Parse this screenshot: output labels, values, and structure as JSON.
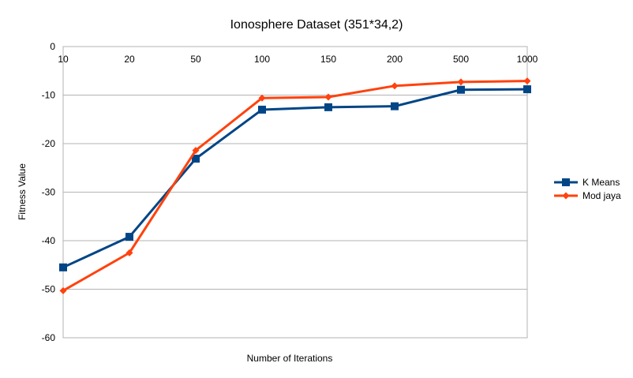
{
  "chart_data": {
    "type": "line",
    "title": "Ionosphere Dataset (351*34,2)",
    "xlabel": "Number of Iterations",
    "ylabel": "Fitness Value",
    "categories": [
      "10",
      "20",
      "50",
      "100",
      "150",
      "200",
      "500",
      "1000"
    ],
    "ylim": [
      -60,
      0
    ],
    "yticks": [
      0,
      -10,
      -20,
      -30,
      -40,
      -50,
      -60
    ],
    "grid": true,
    "legend_position": "right",
    "series": [
      {
        "name": "K Means",
        "color": "#004586",
        "marker": "square",
        "values": [
          -45.5,
          -39.2,
          -23.1,
          -13.0,
          -12.5,
          -12.3,
          -8.9,
          -8.8
        ]
      },
      {
        "name": "Mod jaya",
        "color": "#ff420e",
        "marker": "diamond",
        "values": [
          -50.3,
          -42.5,
          -21.4,
          -10.6,
          -10.4,
          -8.1,
          -7.3,
          -7.1
        ]
      }
    ]
  }
}
